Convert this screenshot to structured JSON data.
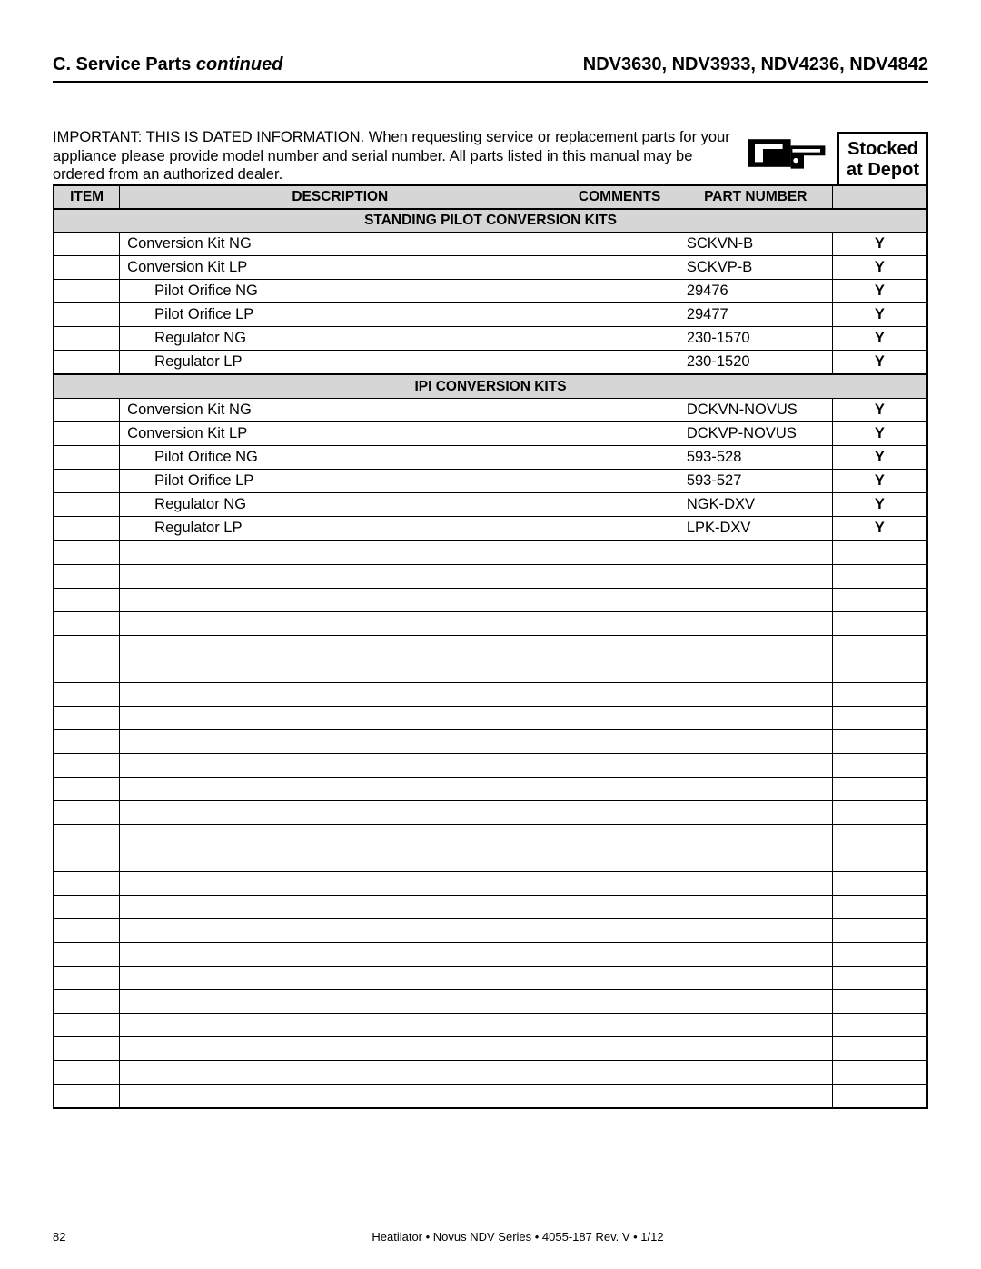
{
  "header": {
    "section_label": "C. Service Parts",
    "continued": "continued",
    "models": "NDV3630, NDV3933, NDV4236,  NDV4842"
  },
  "important_text": "IMPORTANT: THIS IS DATED INFORMATION. When requesting service or replacement parts for your appliance please provide model number and serial number. All parts listed in this manual may be ordered from an authorized dealer.",
  "stocked_box_l1": "Stocked",
  "stocked_box_l2": "at Depot",
  "columns": {
    "item": "ITEM",
    "description": "DESCRIPTION",
    "comments": "COMMENTS",
    "part_number": "PART NUMBER"
  },
  "sections": [
    {
      "title": "STANDING PILOT CONVERSION KITS",
      "rows": [
        {
          "item": "",
          "desc": "Conversion Kit NG",
          "indent": false,
          "comments": "",
          "part": "SCKVN-B",
          "stock": "Y"
        },
        {
          "item": "",
          "desc": "Conversion Kit LP",
          "indent": false,
          "comments": "",
          "part": "SCKVP-B",
          "stock": "Y"
        },
        {
          "item": "",
          "desc": "Pilot Orifice NG",
          "indent": true,
          "comments": "",
          "part": "29476",
          "stock": "Y"
        },
        {
          "item": "",
          "desc": "Pilot Orifice LP",
          "indent": true,
          "comments": "",
          "part": "29477",
          "stock": "Y"
        },
        {
          "item": "",
          "desc": "Regulator NG",
          "indent": true,
          "comments": "",
          "part": "230-1570",
          "stock": "Y"
        },
        {
          "item": "",
          "desc": "Regulator LP",
          "indent": true,
          "comments": "",
          "part": "230-1520",
          "stock": "Y"
        }
      ]
    },
    {
      "title": "IPI CONVERSION KITS",
      "rows": [
        {
          "item": "",
          "desc": "Conversion Kit NG",
          "indent": false,
          "comments": "",
          "part": "DCKVN-NOVUS",
          "stock": "Y"
        },
        {
          "item": "",
          "desc": "Conversion Kit LP",
          "indent": false,
          "comments": "",
          "part": "DCKVP-NOVUS",
          "stock": "Y"
        },
        {
          "item": "",
          "desc": "Pilot Orifice NG",
          "indent": true,
          "comments": "",
          "part": "593-528",
          "stock": "Y"
        },
        {
          "item": "",
          "desc": "Pilot Orifice LP",
          "indent": true,
          "comments": "",
          "part": "593-527",
          "stock": "Y"
        },
        {
          "item": "",
          "desc": "Regulator NG",
          "indent": true,
          "comments": "",
          "part": "NGK-DXV",
          "stock": "Y"
        },
        {
          "item": "",
          "desc": "Regulator LP",
          "indent": true,
          "comments": "",
          "part": "LPK-DXV",
          "stock": "Y"
        }
      ]
    }
  ],
  "empty_row_count": 24,
  "footer": {
    "page_number": "82",
    "text": "Heatilator  •  Novus NDV Series  •  4055-187 Rev. V  •  1/12"
  },
  "colors": {
    "header_bg": "#d6d6d6",
    "border": "#000000",
    "text": "#000000",
    "page_bg": "#ffffff"
  }
}
